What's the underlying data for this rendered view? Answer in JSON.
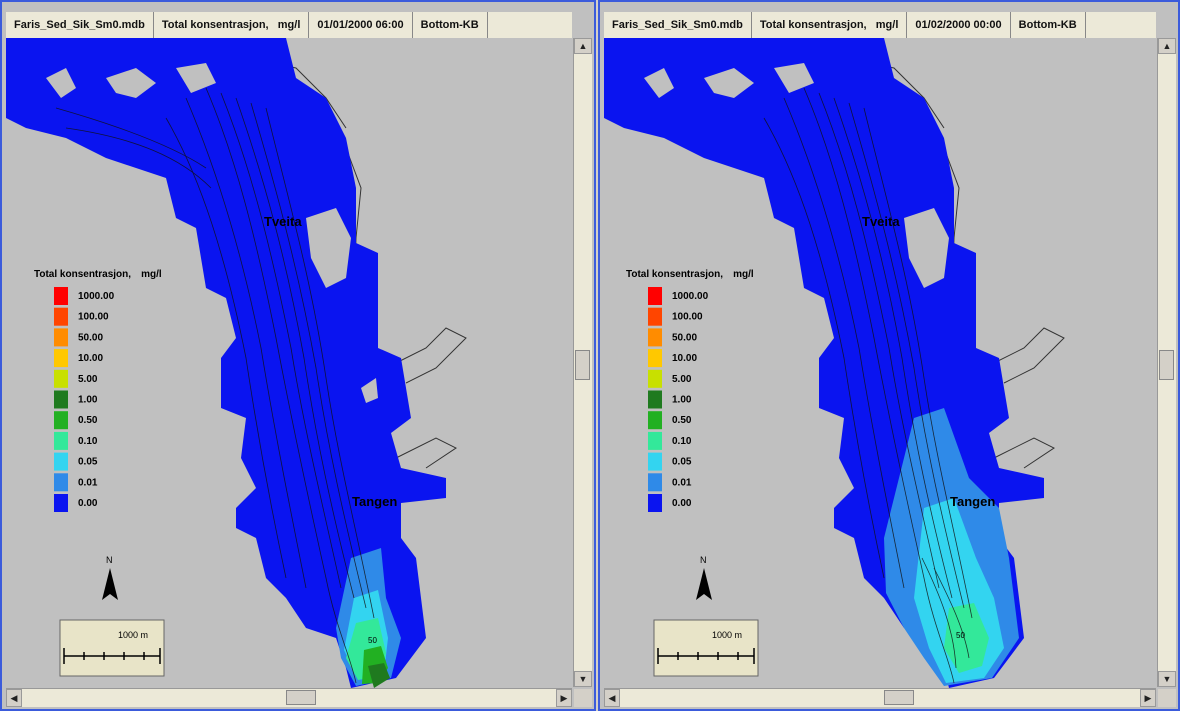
{
  "panes": [
    {
      "file": "Faris_Sed_Sik_Sm0.mdb",
      "variable": "Total konsentrasjon,",
      "unit": "mg/l",
      "timestamp": "01/01/2000 06:00",
      "layer": "Bottom-KB"
    },
    {
      "file": "Faris_Sed_Sik_Sm0.mdb",
      "variable": "Total konsentrasjon,",
      "unit": "mg/l",
      "timestamp": "01/02/2000 00:00",
      "layer": "Bottom-KB"
    }
  ],
  "legend": {
    "title": "Total konsentrasjon,",
    "unit": "mg/l",
    "entries": [
      {
        "label": "1000.00",
        "color": "#ff0000"
      },
      {
        "label": "100.00",
        "color": "#ff4500"
      },
      {
        "label": "50.00",
        "color": "#ff8c00"
      },
      {
        "label": "10.00",
        "color": "#ffc800"
      },
      {
        "label": "5.00",
        "color": "#c8e000"
      },
      {
        "label": "1.00",
        "color": "#1f7a1f"
      },
      {
        "label": "0.50",
        "color": "#22b022"
      },
      {
        "label": "0.10",
        "color": "#33e89a"
      },
      {
        "label": "0.05",
        "color": "#33d4f0"
      },
      {
        "label": "0.01",
        "color": "#2f8ae8"
      },
      {
        "label": "0.00",
        "color": "#0a14f0"
      }
    ]
  },
  "place_labels": {
    "upper": "Tveita",
    "lower": "Tangen"
  },
  "north_arrow": "N",
  "scale_bar": "1000 m",
  "contour_labels": [
    "50",
    "50"
  ],
  "colors": {
    "land": "#c0c0c0",
    "water_low": "#0a14f0",
    "window_border": "#3b5bdb"
  }
}
